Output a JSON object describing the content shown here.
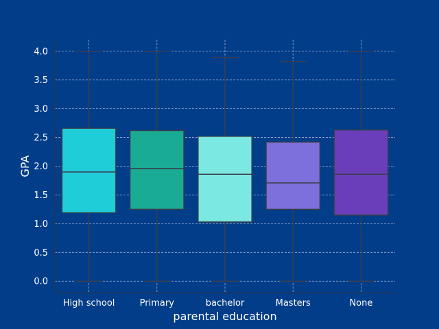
{
  "chart_data": {
    "type": "box",
    "title": "",
    "xlabel": "parental education",
    "ylabel": "GPA",
    "ylim": [
      -0.2,
      4.2
    ],
    "yticks": [
      "0.0",
      "0.5",
      "1.0",
      "1.5",
      "2.0",
      "2.5",
      "3.0",
      "3.5",
      "4.0"
    ],
    "grid": true,
    "categories": [
      "High school",
      "Primary",
      "bachelor",
      "Masters",
      "None"
    ],
    "colors": [
      "#1ecdd8",
      "#1aab95",
      "#7be8e1",
      "#7d70dc",
      "#6a3eba"
    ],
    "boxes": [
      {
        "min": 0.0,
        "q1": 1.19,
        "median": 1.9,
        "q3": 2.66,
        "max": 4.0
      },
      {
        "min": 0.0,
        "q1": 1.25,
        "median": 1.96,
        "q3": 2.62,
        "max": 4.0
      },
      {
        "min": 0.0,
        "q1": 1.03,
        "median": 1.86,
        "q3": 2.52,
        "max": 3.89
      },
      {
        "min": 0.0,
        "q1": 1.25,
        "median": 1.71,
        "q3": 2.42,
        "max": 3.82
      },
      {
        "min": 0.0,
        "q1": 1.15,
        "median": 1.86,
        "q3": 2.63,
        "max": 4.0
      }
    ]
  }
}
